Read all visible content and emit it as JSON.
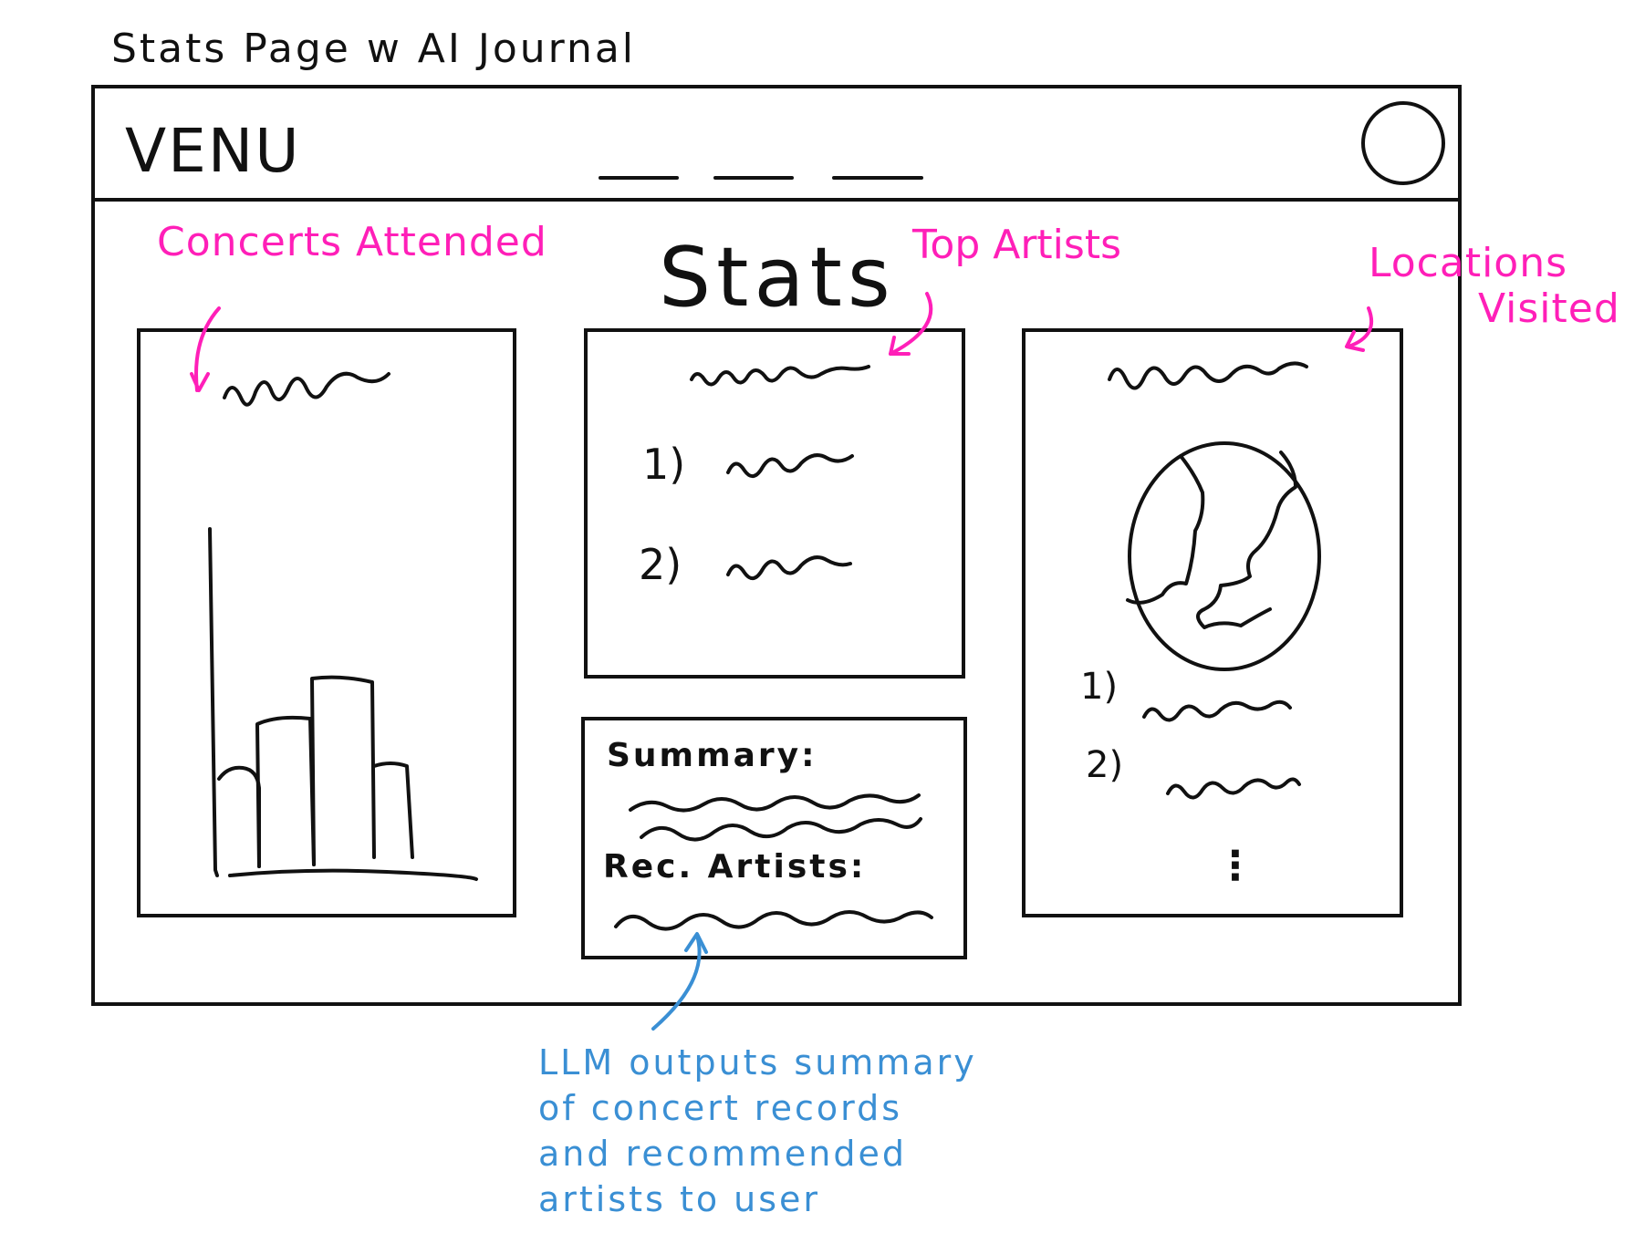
{
  "page_title": "Stats Page w AI Journal",
  "app": {
    "logo": "VENU",
    "heading": "Stats"
  },
  "annotations": {
    "concerts_attended": "Concerts Attended",
    "top_artists": "Top Artists",
    "locations_visited_line1": "Locations",
    "locations_visited_line2": "Visited",
    "llm_note": [
      "LLM outputs summary",
      "of concert records",
      "and recommended",
      "artists to user"
    ]
  },
  "top_artists_panel": {
    "ranks": [
      "1)",
      "2)"
    ]
  },
  "journal_panel": {
    "summary_label": "Summary:",
    "rec_artists_label": "Rec. Artists:"
  },
  "locations_panel": {
    "ranks": [
      "1)",
      "2)"
    ],
    "more": "⋮"
  },
  "colors": {
    "sketch": "#111111",
    "annotation_pink": "#ff1fb8",
    "annotation_blue": "#3a8fd4"
  },
  "icons": {
    "avatar": "profile-circle-icon",
    "globe": "globe-icon",
    "bar_chart": "bar-chart-icon"
  }
}
